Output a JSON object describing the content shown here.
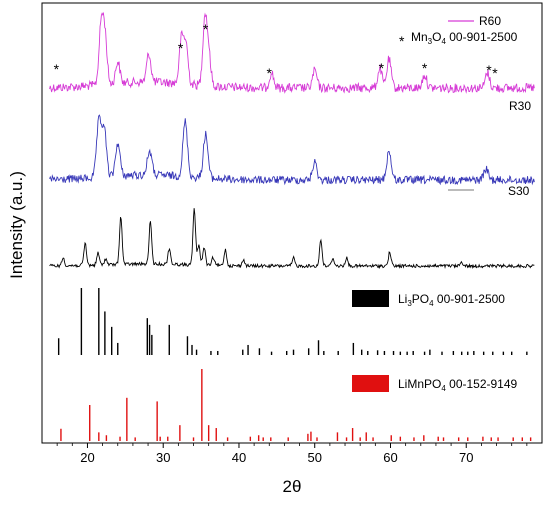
{
  "chart_data": {
    "type": "line",
    "xlabel": "2θ",
    "ylabel": "Intensity (a.u.)",
    "xlim": [
      14,
      80
    ],
    "xticks": [
      20,
      30,
      40,
      50,
      60,
      70
    ],
    "series": [
      {
        "name": "R60",
        "color": "#d63cd6",
        "peaks": [
          [
            21.8,
            2.6
          ],
          [
            22.3,
            2.2
          ],
          [
            24.0,
            1.0
          ],
          [
            28.1,
            1.3
          ],
          [
            32.4,
            2.0
          ],
          [
            33.0,
            1.8
          ],
          [
            35.5,
            3.0
          ],
          [
            36.0,
            1.4
          ],
          [
            44.3,
            0.7
          ],
          [
            50.0,
            0.8
          ],
          [
            58.6,
            0.9
          ],
          [
            59.8,
            1.3
          ],
          [
            64.5,
            0.6
          ],
          [
            72.8,
            0.7
          ]
        ]
      },
      {
        "name": "R30",
        "color": "#3838b8",
        "peaks": [
          [
            21.5,
            2.5
          ],
          [
            22.2,
            2.2
          ],
          [
            24.0,
            1.5
          ],
          [
            28.2,
            1.1
          ],
          [
            32.9,
            2.5
          ],
          [
            35.6,
            2.0
          ],
          [
            50.0,
            0.8
          ],
          [
            59.8,
            1.3
          ],
          [
            72.6,
            0.5
          ]
        ]
      },
      {
        "name": "S30",
        "color": "#000000",
        "peaks": [
          [
            16.8,
            0.4
          ],
          [
            19.7,
            1.1
          ],
          [
            21.4,
            0.6
          ],
          [
            22.4,
            0.3
          ],
          [
            24.4,
            2.4
          ],
          [
            28.3,
            2.1
          ],
          [
            30.8,
            0.8
          ],
          [
            34.1,
            2.8
          ],
          [
            34.7,
            1.0
          ],
          [
            35.4,
            0.9
          ],
          [
            36.6,
            0.4
          ],
          [
            38.2,
            0.8
          ],
          [
            40.6,
            0.3
          ],
          [
            47.2,
            0.4
          ],
          [
            50.8,
            1.3
          ],
          [
            52.4,
            0.4
          ],
          [
            54.2,
            0.4
          ],
          [
            59.9,
            0.7
          ],
          [
            69.4,
            0.2
          ]
        ]
      }
    ],
    "references": [
      {
        "label_parts": [
          "Li",
          "3",
          "PO",
          "4",
          " 00-901-2500"
        ],
        "color": "#000000",
        "lines": [
          [
            16.2,
            0.25
          ],
          [
            19.2,
            1.0
          ],
          [
            21.5,
            1.0
          ],
          [
            22.3,
            0.65
          ],
          [
            23.2,
            0.42
          ],
          [
            24.0,
            0.18
          ],
          [
            27.9,
            0.55
          ],
          [
            28.2,
            0.45
          ],
          [
            28.5,
            0.3
          ],
          [
            30.8,
            0.45
          ],
          [
            33.2,
            0.28
          ],
          [
            33.8,
            0.15
          ],
          [
            34.4,
            0.08
          ],
          [
            36.3,
            0.06
          ],
          [
            37.2,
            0.06
          ],
          [
            40.5,
            0.08
          ],
          [
            41.2,
            0.15
          ],
          [
            42.7,
            0.1
          ],
          [
            44.3,
            0.05
          ],
          [
            46.3,
            0.06
          ],
          [
            47.2,
            0.08
          ],
          [
            49.2,
            0.1
          ],
          [
            50.5,
            0.22
          ],
          [
            51.2,
            0.06
          ],
          [
            53.1,
            0.06
          ],
          [
            55.1,
            0.18
          ],
          [
            56.2,
            0.08
          ],
          [
            57.0,
            0.06
          ],
          [
            58.3,
            0.07
          ],
          [
            59.2,
            0.06
          ],
          [
            60.4,
            0.06
          ],
          [
            61.3,
            0.05
          ],
          [
            62.2,
            0.05
          ],
          [
            63.0,
            0.06
          ],
          [
            64.5,
            0.05
          ],
          [
            65.2,
            0.08
          ],
          [
            66.8,
            0.05
          ],
          [
            68.3,
            0.06
          ],
          [
            69.4,
            0.05
          ],
          [
            70.2,
            0.05
          ],
          [
            71.0,
            0.06
          ],
          [
            72.3,
            0.05
          ],
          [
            73.5,
            0.05
          ],
          [
            74.9,
            0.05
          ],
          [
            76.0,
            0.05
          ],
          [
            78.0,
            0.05
          ]
        ]
      },
      {
        "label_parts": [
          "LiMnPO",
          "4",
          " 00-152-9149"
        ],
        "color": "#e01010",
        "lines": [
          [
            16.5,
            0.17
          ],
          [
            20.3,
            0.5
          ],
          [
            21.5,
            0.12
          ],
          [
            22.5,
            0.08
          ],
          [
            24.3,
            0.06
          ],
          [
            25.2,
            0.6
          ],
          [
            26.3,
            0.05
          ],
          [
            29.2,
            0.55
          ],
          [
            29.6,
            0.06
          ],
          [
            30.6,
            0.06
          ],
          [
            32.2,
            0.22
          ],
          [
            34.0,
            0.05
          ],
          [
            35.1,
            1.0
          ],
          [
            36.0,
            0.22
          ],
          [
            37.0,
            0.18
          ],
          [
            38.5,
            0.05
          ],
          [
            41.5,
            0.06
          ],
          [
            42.6,
            0.08
          ],
          [
            43.2,
            0.05
          ],
          [
            44.2,
            0.05
          ],
          [
            46.5,
            0.05
          ],
          [
            49.1,
            0.1
          ],
          [
            49.5,
            0.13
          ],
          [
            50.3,
            0.05
          ],
          [
            53.0,
            0.12
          ],
          [
            54.2,
            0.05
          ],
          [
            55.0,
            0.18
          ],
          [
            56.0,
            0.05
          ],
          [
            56.8,
            0.12
          ],
          [
            57.7,
            0.05
          ],
          [
            60.1,
            0.08
          ],
          [
            61.3,
            0.06
          ],
          [
            63.1,
            0.05
          ],
          [
            64.4,
            0.08
          ],
          [
            66.3,
            0.06
          ],
          [
            67.0,
            0.05
          ],
          [
            69.0,
            0.05
          ],
          [
            70.2,
            0.05
          ],
          [
            72.2,
            0.06
          ],
          [
            73.3,
            0.05
          ],
          [
            74.2,
            0.05
          ],
          [
            76.2,
            0.05
          ],
          [
            77.4,
            0.05
          ],
          [
            78.5,
            0.05
          ]
        ]
      }
    ],
    "annotations": {
      "star_symbol": "*",
      "mn3o4_label_parts": [
        "Mn",
        "3",
        "O",
        "4",
        " 00-901-2500"
      ],
      "star_positions": [
        15.9,
        32.3,
        35.6,
        44.0,
        58.8,
        64.5,
        73.0,
        73.8
      ]
    }
  }
}
